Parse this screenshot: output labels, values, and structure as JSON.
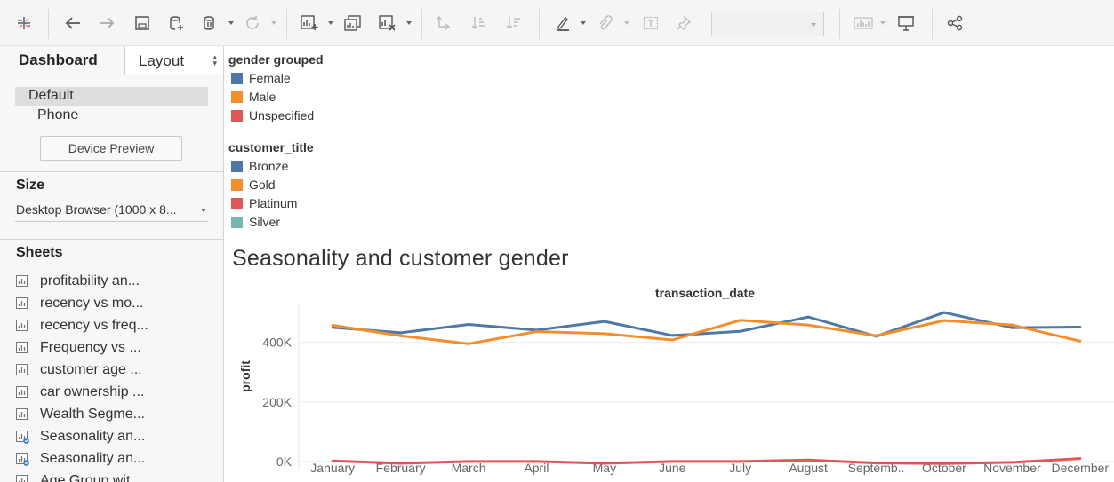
{
  "toolbar": {
    "icons": [
      "tableau-logo-icon",
      "undo-icon",
      "redo-icon",
      "save-icon",
      "new-data-source-icon",
      "pause-updates-icon",
      "refresh-icon",
      "new-worksheet-icon",
      "duplicate-sheet-icon",
      "clear-sheet-icon",
      "swap-icon",
      "sort-ascending-icon",
      "sort-descending-icon",
      "highlight-icon",
      "annotate-icon",
      "show-labels-icon",
      "fix-axes-icon",
      "show-me-icon",
      "presentation-icon",
      "share-icon"
    ],
    "fit_value": ""
  },
  "left_panel": {
    "tabs": {
      "dashboard": "Dashboard",
      "layout": "Layout"
    },
    "devices": {
      "default": "Default",
      "phone": "Phone"
    },
    "device_preview_button": "Device Preview",
    "size_section": {
      "title": "Size",
      "value": "Desktop Browser (1000 x 8..."
    },
    "sheets_section": {
      "title": "Sheets",
      "items": [
        {
          "label": "profitability an...",
          "in_use": false
        },
        {
          "label": "recency vs mo...",
          "in_use": false
        },
        {
          "label": "recency vs freq...",
          "in_use": false
        },
        {
          "label": "Frequency vs ...",
          "in_use": false
        },
        {
          "label": "customer age ...",
          "in_use": false
        },
        {
          "label": "car ownership ...",
          "in_use": false
        },
        {
          "label": "Wealth Segme...",
          "in_use": false
        },
        {
          "label": "Seasonality an...",
          "in_use": true
        },
        {
          "label": "Seasonality an...",
          "in_use": true
        },
        {
          "label": "Age Group wit...",
          "in_use": false
        }
      ]
    }
  },
  "legends": [
    {
      "title": "gender grouped",
      "items": [
        {
          "label": "Female",
          "color": "#4e79a7"
        },
        {
          "label": "Male",
          "color": "#f28e2b"
        },
        {
          "label": "Unspecified",
          "color": "#e15759"
        }
      ]
    },
    {
      "title": "customer_title",
      "items": [
        {
          "label": "Bronze",
          "color": "#4e79a7"
        },
        {
          "label": "Gold",
          "color": "#f28e2b"
        },
        {
          "label": "Platinum",
          "color": "#e15759"
        },
        {
          "label": "Silver",
          "color": "#76b7b2"
        }
      ]
    }
  ],
  "chart_data": {
    "type": "line",
    "title": "Seasonality and customer gender",
    "xlabel": "transaction_date",
    "ylabel": "profit",
    "categories": [
      "January",
      "February",
      "March",
      "April",
      "May",
      "June",
      "July",
      "August",
      "Septemb..",
      "October",
      "November",
      "December"
    ],
    "y_ticks": [
      "0K",
      "200K",
      "400K"
    ],
    "y_tick_values": [
      0,
      200000,
      400000
    ],
    "ylim": [
      -30000,
      530000
    ],
    "grid": true,
    "series": [
      {
        "name": "Female",
        "color": "#4e79a7",
        "values": [
          450000,
          432000,
          460000,
          441000,
          470000,
          423000,
          437000,
          485000,
          420000,
          500000,
          449000,
          451000
        ]
      },
      {
        "name": "Male",
        "color": "#f28e2b",
        "values": [
          457000,
          422000,
          395000,
          436000,
          429000,
          408000,
          474000,
          458000,
          422000,
          473000,
          458000,
          404000
        ]
      },
      {
        "name": "Unspecified",
        "color": "#e15759",
        "values": [
          2000,
          -6000,
          0,
          0,
          -6000,
          0,
          0,
          5000,
          -5000,
          -7000,
          -3000,
          10000
        ]
      }
    ]
  }
}
